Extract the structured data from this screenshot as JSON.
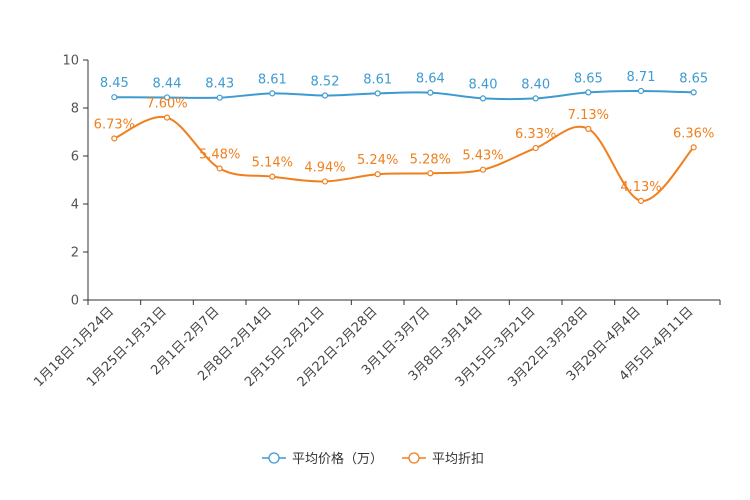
{
  "chart_data": {
    "type": "line",
    "categories": [
      "1月18日-1月24日",
      "1月25日-1月31日",
      "2月1日-2月7日",
      "2月8日-2月14日",
      "2月15日-2月21日",
      "2月22日-2月28日",
      "3月1日-3月7日",
      "3月8日-3月14日",
      "3月15日-3月21日",
      "3月22日-3月28日",
      "3月29日-4月4日",
      "4月5日-4月11日"
    ],
    "y_ticks": [
      "0",
      "2",
      "4",
      "6",
      "8",
      "10"
    ],
    "ylim": [
      0,
      10
    ],
    "series": [
      {
        "name": "平均价格（万）",
        "color": "#3d9bd2",
        "values": [
          8.45,
          8.44,
          8.43,
          8.61,
          8.52,
          8.61,
          8.64,
          8.4,
          8.4,
          8.65,
          8.71,
          8.65
        ],
        "labels": [
          "8.45",
          "8.44",
          "8.43",
          "8.61",
          "8.52",
          "8.61",
          "8.64",
          "8.40",
          "8.40",
          "8.65",
          "8.71",
          "8.65"
        ]
      },
      {
        "name": "平均折扣",
        "color": "#f07f1e",
        "values": [
          6.73,
          7.6,
          5.48,
          5.14,
          4.94,
          5.24,
          5.28,
          5.43,
          6.33,
          7.13,
          4.13,
          6.36
        ],
        "labels": [
          "6.73%",
          "7.60%",
          "5.48%",
          "5.14%",
          "4.94%",
          "5.24%",
          "5.28%",
          "5.43%",
          "6.33%",
          "7.13%",
          "4.13%",
          "6.36%"
        ]
      }
    ],
    "legend": "bottom-center"
  }
}
